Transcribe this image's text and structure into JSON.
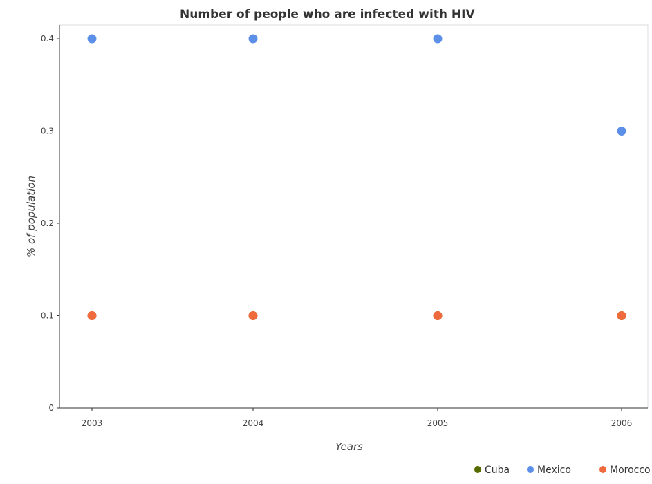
{
  "chart_data": {
    "type": "scatter",
    "title": "Number of people who are infected with HIV",
    "xlabel": "Years",
    "ylabel": "% of population",
    "categories": [
      "2003",
      "2004",
      "2005",
      "2006"
    ],
    "ylim": [
      0,
      0.4
    ],
    "yticks": [
      0,
      0.1,
      0.2,
      0.3,
      0.4
    ],
    "ytick_labels": [
      "0",
      "0.1",
      "0.2",
      "0.3",
      "0.4"
    ],
    "grid": false,
    "legend_position": "bottom-right",
    "series": [
      {
        "name": "Cuba",
        "color": "#556b00",
        "values": [
          0.1,
          0.1,
          0.1,
          0.1
        ]
      },
      {
        "name": "Mexico",
        "color": "#5b8fe8",
        "values": [
          0.4,
          0.4,
          0.4,
          0.3
        ]
      },
      {
        "name": "Morocco",
        "color": "#ef6a3c",
        "values": [
          0.1,
          0.1,
          0.1,
          0.1
        ]
      }
    ]
  }
}
